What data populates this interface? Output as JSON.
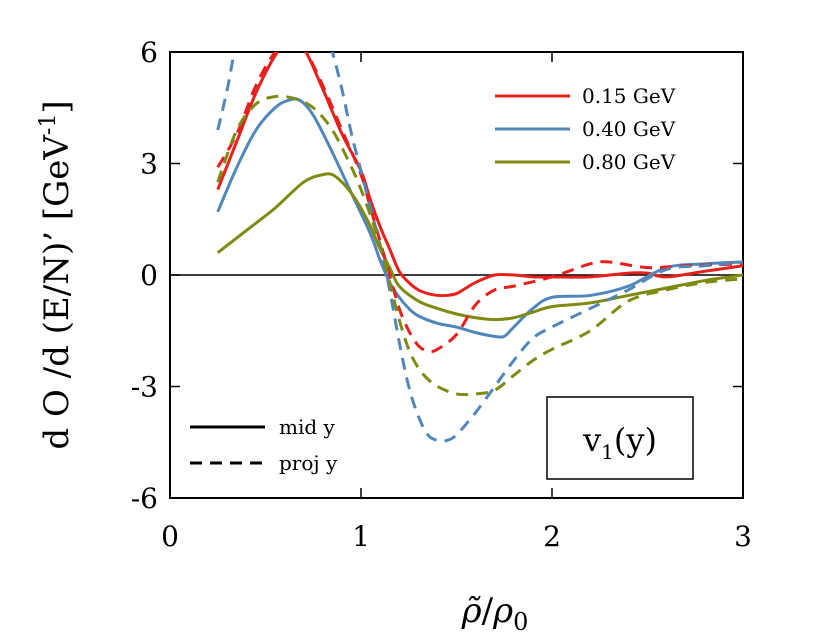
{
  "chart_data": {
    "type": "line",
    "xlabel": "ρ̃/ρ0",
    "ylabel": "d O /d (E/N)’ [GeV⁻¹]",
    "xlim": [
      0,
      3
    ],
    "ylim": [
      -6,
      6
    ],
    "x_ticks": [
      "0",
      "1",
      "2",
      "3"
    ],
    "y_ticks": [
      "6",
      "3",
      "0",
      "-3",
      "-6"
    ],
    "y_ticks_values": [
      6,
      3,
      0,
      -3,
      -6
    ],
    "x_ticks_values": [
      0,
      1,
      2,
      3
    ],
    "annotation": "v1(y)",
    "legend": {
      "placement": "top-right",
      "items": [
        {
          "label": "0.15 GeV",
          "color": "#e8201c"
        },
        {
          "label": "0.40 GeV",
          "color": "#4f87bb"
        },
        {
          "label": "0.80 GeV",
          "color": "#7f8a10"
        }
      ]
    },
    "style_legend": {
      "placement": "bottom-left",
      "items": [
        {
          "label": "mid y",
          "dash": "solid"
        },
        {
          "label": "proj y",
          "dash": "dashed"
        }
      ]
    },
    "series": [
      {
        "legend": "0.15 GeV",
        "style": "mid y",
        "color": "#e8201c",
        "dash": "solid",
        "x": [
          0.25,
          0.35,
          0.45,
          0.55,
          0.62,
          0.7,
          0.8,
          0.9,
          1.0,
          1.05,
          1.1,
          1.15,
          1.2,
          1.25,
          1.3,
          1.35,
          1.4,
          1.45,
          1.5,
          1.55,
          1.6,
          1.7,
          1.8,
          1.9,
          2.0,
          2.2,
          2.4,
          2.5,
          2.6,
          2.8,
          3.0
        ],
        "y": [
          2.3,
          3.6,
          4.9,
          5.9,
          6.3,
          6.1,
          5.0,
          3.8,
          2.8,
          2.0,
          1.3,
          0.7,
          0.1,
          -0.2,
          -0.4,
          -0.5,
          -0.55,
          -0.55,
          -0.5,
          -0.35,
          -0.2,
          0.0,
          0.0,
          -0.05,
          -0.05,
          -0.05,
          0.05,
          0.05,
          -0.05,
          0.1,
          0.25
        ]
      },
      {
        "legend": "0.40 GeV",
        "style": "mid y",
        "color": "#4f87bb",
        "dash": "solid",
        "x": [
          0.25,
          0.35,
          0.45,
          0.55,
          0.62,
          0.68,
          0.75,
          0.85,
          0.95,
          1.05,
          1.1,
          1.15,
          1.2,
          1.25,
          1.3,
          1.4,
          1.5,
          1.6,
          1.7,
          1.75,
          1.8,
          1.9,
          2.0,
          2.2,
          2.4,
          2.6,
          2.8,
          3.0
        ],
        "y": [
          1.7,
          2.9,
          3.9,
          4.5,
          4.7,
          4.7,
          4.3,
          3.3,
          2.2,
          1.1,
          0.4,
          -0.2,
          -0.6,
          -0.9,
          -1.1,
          -1.3,
          -1.4,
          -1.55,
          -1.65,
          -1.65,
          -1.4,
          -0.9,
          -0.6,
          -0.55,
          -0.3,
          0.2,
          0.3,
          0.35
        ]
      },
      {
        "legend": "0.80 GeV",
        "style": "mid y",
        "color": "#7f8a10",
        "dash": "solid",
        "x": [
          0.25,
          0.4,
          0.55,
          0.7,
          0.8,
          0.85,
          0.9,
          0.95,
          1.0,
          1.05,
          1.1,
          1.15,
          1.2,
          1.3,
          1.4,
          1.5,
          1.6,
          1.7,
          1.8,
          1.9,
          2.0,
          2.2,
          2.4,
          2.6,
          2.8,
          3.0
        ],
        "y": [
          0.6,
          1.2,
          1.8,
          2.5,
          2.7,
          2.7,
          2.5,
          2.2,
          1.8,
          1.3,
          0.7,
          0.2,
          -0.3,
          -0.7,
          -0.9,
          -1.05,
          -1.15,
          -1.2,
          -1.15,
          -1.0,
          -0.85,
          -0.75,
          -0.55,
          -0.35,
          -0.15,
          0.0
        ]
      },
      {
        "legend": "0.15 GeV",
        "style": "proj y",
        "color": "#e8201c",
        "dash": "dashed",
        "x": [
          0.25,
          0.35,
          0.45,
          0.55,
          0.62,
          0.7,
          0.8,
          0.9,
          1.0,
          1.05,
          1.1,
          1.15,
          1.2,
          1.25,
          1.3,
          1.35,
          1.4,
          1.5,
          1.6,
          1.7,
          1.8,
          2.0,
          2.2,
          2.3,
          2.5,
          2.7,
          3.0
        ],
        "y": [
          2.9,
          3.8,
          5.1,
          6.0,
          6.3,
          6.1,
          5.1,
          3.9,
          2.7,
          1.8,
          0.9,
          0.0,
          -0.9,
          -1.5,
          -1.9,
          -2.05,
          -2.0,
          -1.6,
          -0.8,
          -0.4,
          -0.3,
          -0.05,
          0.3,
          0.35,
          0.2,
          0.25,
          0.3
        ]
      },
      {
        "legend": "0.40 GeV",
        "style": "proj y",
        "color": "#4f87bb",
        "dash": "dashed",
        "x": [
          0.25,
          0.3,
          0.35,
          0.4,
          0.8,
          0.85,
          0.9,
          0.95,
          1.0,
          1.05,
          1.1,
          1.15,
          1.2,
          1.25,
          1.3,
          1.35,
          1.4,
          1.45,
          1.5,
          1.6,
          1.7,
          1.8,
          1.9,
          2.0,
          2.2,
          2.4,
          2.6,
          2.8,
          3.0
        ],
        "y": [
          3.9,
          5.0,
          6.3,
          6.8,
          6.8,
          6.0,
          5.0,
          3.8,
          2.8,
          1.8,
          0.8,
          -0.4,
          -1.8,
          -3.0,
          -3.8,
          -4.3,
          -4.45,
          -4.45,
          -4.3,
          -3.7,
          -3.0,
          -2.3,
          -1.7,
          -1.4,
          -0.9,
          -0.4,
          0.15,
          0.25,
          0.35
        ]
      },
      {
        "legend": "0.80 GeV",
        "style": "proj y",
        "color": "#7f8a10",
        "dash": "dashed",
        "x": [
          0.25,
          0.35,
          0.45,
          0.55,
          0.65,
          0.75,
          0.85,
          0.95,
          1.0,
          1.05,
          1.1,
          1.15,
          1.2,
          1.25,
          1.3,
          1.35,
          1.4,
          1.5,
          1.6,
          1.7,
          1.8,
          1.9,
          2.0,
          2.2,
          2.4,
          2.6,
          2.8,
          3.0
        ],
        "y": [
          2.5,
          3.9,
          4.6,
          4.8,
          4.75,
          4.5,
          3.9,
          2.9,
          2.3,
          1.6,
          0.8,
          -0.2,
          -1.2,
          -2.0,
          -2.5,
          -2.8,
          -3.0,
          -3.2,
          -3.2,
          -3.1,
          -2.7,
          -2.3,
          -2.0,
          -1.5,
          -0.7,
          -0.4,
          -0.2,
          -0.1
        ]
      }
    ]
  }
}
